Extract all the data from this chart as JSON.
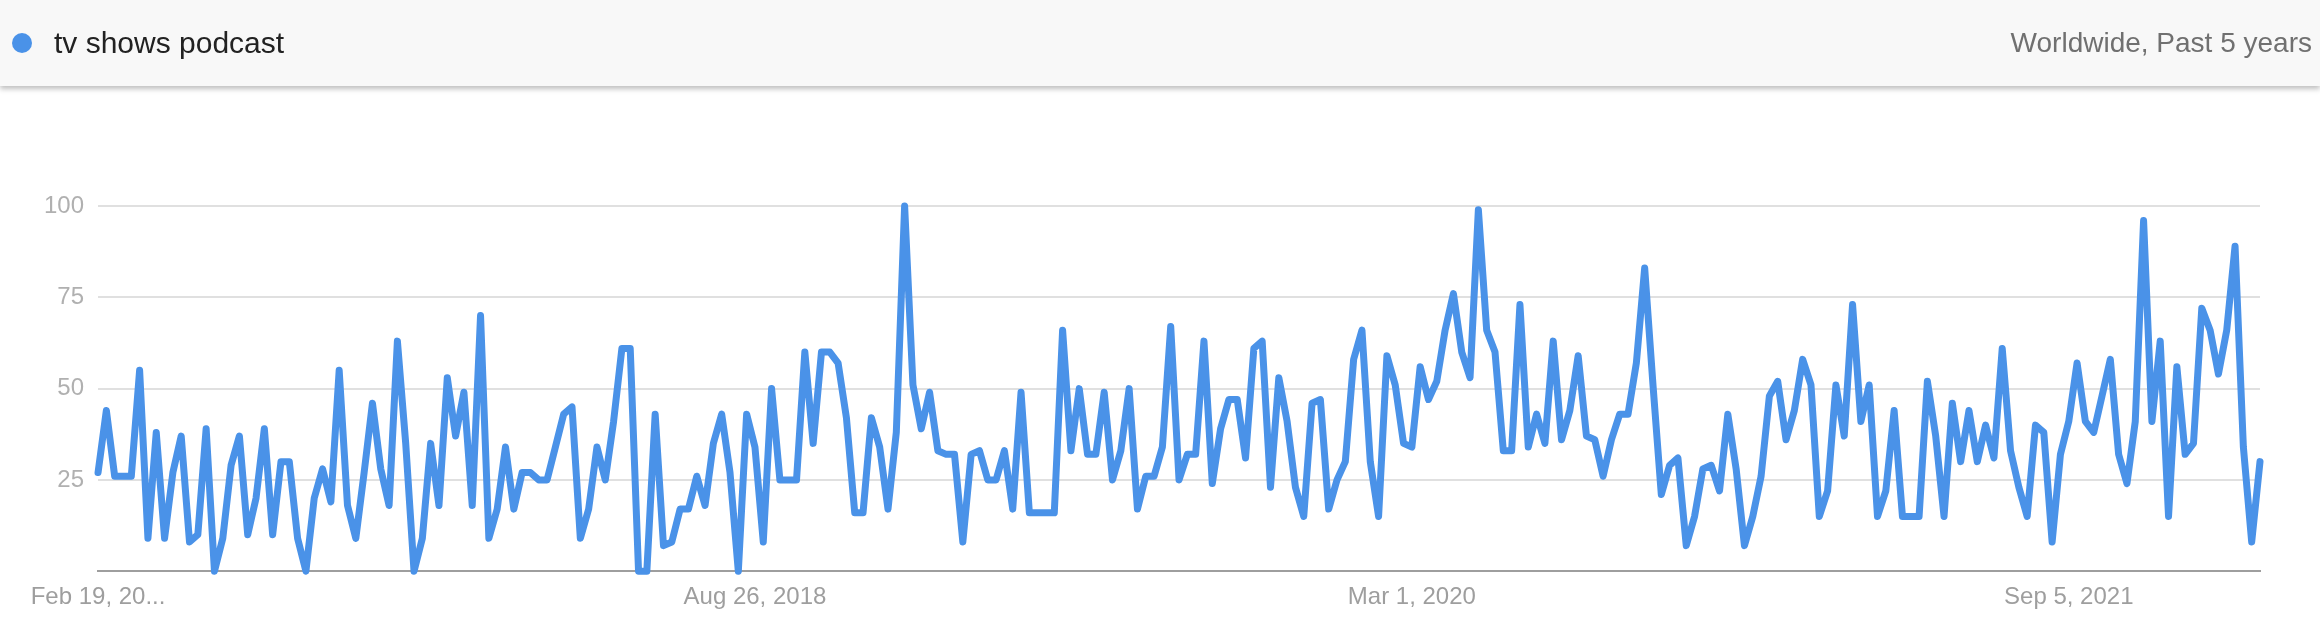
{
  "chart_data": {
    "type": "line",
    "subtitle": "Worldwide, Past 5 years",
    "categories": [
      "Feb 19, 20...",
      null,
      null,
      null,
      null,
      null,
      null,
      null,
      null,
      null,
      null,
      null,
      null,
      null,
      null,
      null,
      null,
      null,
      null,
      null,
      null,
      null,
      null,
      null,
      null,
      null,
      null,
      null,
      null,
      null,
      null,
      null,
      null,
      null,
      null,
      null,
      null,
      null,
      null,
      null,
      null,
      null,
      null,
      null,
      null,
      null,
      null,
      null,
      null,
      null,
      null,
      null,
      null,
      null,
      null,
      null,
      null,
      null,
      null,
      null,
      null,
      null,
      null,
      null,
      null,
      null,
      null,
      null,
      null,
      null,
      null,
      null,
      null,
      null,
      null,
      null,
      null,
      null,
      null,
      "Aug 26, 2018",
      null,
      null,
      null,
      null,
      null,
      null,
      null,
      null,
      null,
      null,
      null,
      null,
      null,
      null,
      null,
      null,
      null,
      null,
      null,
      null,
      null,
      null,
      null,
      null,
      null,
      null,
      null,
      null,
      null,
      null,
      null,
      null,
      null,
      null,
      null,
      null,
      null,
      null,
      null,
      null,
      null,
      null,
      null,
      null,
      null,
      null,
      null,
      null,
      null,
      null,
      null,
      null,
      null,
      null,
      null,
      null,
      null,
      null,
      null,
      null,
      null,
      null,
      null,
      null,
      null,
      null,
      null,
      null,
      null,
      null,
      null,
      null,
      null,
      null,
      null,
      null,
      null,
      null,
      "Mar 1, 2020",
      null,
      null,
      null,
      null,
      null,
      null,
      null,
      null,
      null,
      null,
      null,
      null,
      null,
      null,
      null,
      null,
      null,
      null,
      null,
      null,
      null,
      null,
      null,
      null,
      null,
      null,
      null,
      null,
      null,
      null,
      null,
      null,
      null,
      null,
      null,
      null,
      null,
      null,
      null,
      null,
      null,
      null,
      null,
      null,
      null,
      null,
      null,
      null,
      null,
      null,
      null,
      null,
      null,
      null,
      null,
      null,
      null,
      null,
      null,
      null,
      null,
      null,
      null,
      null,
      null,
      null,
      null,
      null,
      null,
      null,
      null,
      null,
      null,
      null,
      null,
      null,
      null,
      null,
      "Sep 5, 2021",
      null,
      null,
      null,
      null,
      null,
      null,
      null,
      null,
      null,
      null,
      null,
      null,
      null,
      null,
      null,
      null,
      null,
      null,
      null,
      null,
      null,
      null,
      null
    ],
    "series": [
      {
        "name": "tv shows podcast",
        "color": "#4a92e8",
        "values": [
          27,
          44,
          26,
          26,
          26,
          55,
          9,
          38,
          9,
          27,
          37,
          8,
          10,
          39,
          0,
          9,
          29,
          37,
          10,
          20,
          39,
          10,
          30,
          30,
          9,
          0,
          20,
          28,
          19,
          55,
          18,
          9,
          27,
          46,
          28,
          18,
          63,
          35,
          0,
          9,
          35,
          18,
          53,
          37,
          49,
          18,
          70,
          9,
          17,
          34,
          17,
          27,
          27,
          25,
          25,
          34,
          43,
          45,
          9,
          17,
          34,
          25,
          41,
          61,
          61,
          0,
          0,
          43,
          7,
          8,
          17,
          17,
          26,
          18,
          35,
          43,
          27,
          0,
          43,
          34,
          8,
          50,
          25,
          25,
          25,
          60,
          35,
          60,
          60,
          57,
          42,
          16,
          16,
          42,
          34,
          17,
          38,
          100,
          51,
          39,
          49,
          33,
          32,
          32,
          8,
          32,
          33,
          25,
          25,
          33,
          17,
          49,
          16,
          16,
          16,
          16,
          66,
          33,
          50,
          32,
          32,
          49,
          25,
          33,
          50,
          17,
          26,
          26,
          34,
          67,
          25,
          32,
          32,
          63,
          24,
          39,
          47,
          47,
          31,
          61,
          63,
          23,
          53,
          41,
          23,
          15,
          46,
          47,
          17,
          25,
          30,
          58,
          66,
          30,
          15,
          59,
          51,
          35,
          34,
          56,
          47,
          52,
          66,
          76,
          60,
          53,
          99,
          66,
          60,
          33,
          33,
          73,
          34,
          43,
          35,
          63,
          36,
          44,
          59,
          37,
          36,
          26,
          36,
          43,
          43,
          57,
          83,
          51,
          21,
          29,
          31,
          7,
          15,
          28,
          29,
          22,
          43,
          28,
          7,
          15,
          26,
          48,
          52,
          36,
          44,
          58,
          51,
          15,
          22,
          51,
          37,
          73,
          41,
          51,
          15,
          22,
          44,
          15,
          15,
          15,
          52,
          37,
          15,
          46,
          30,
          44,
          30,
          40,
          31,
          61,
          33,
          23,
          15,
          40,
          38,
          8,
          32,
          41,
          57,
          41,
          38,
          48,
          58,
          32,
          24,
          41,
          96,
          41,
          63,
          15,
          56,
          32,
          35,
          72,
          66,
          54,
          66,
          89,
          34,
          8,
          30
        ]
      }
    ],
    "ylim": [
      0,
      100
    ],
    "yticks": [
      25,
      50,
      75,
      100
    ],
    "grid": "y",
    "legend": "top left"
  }
}
